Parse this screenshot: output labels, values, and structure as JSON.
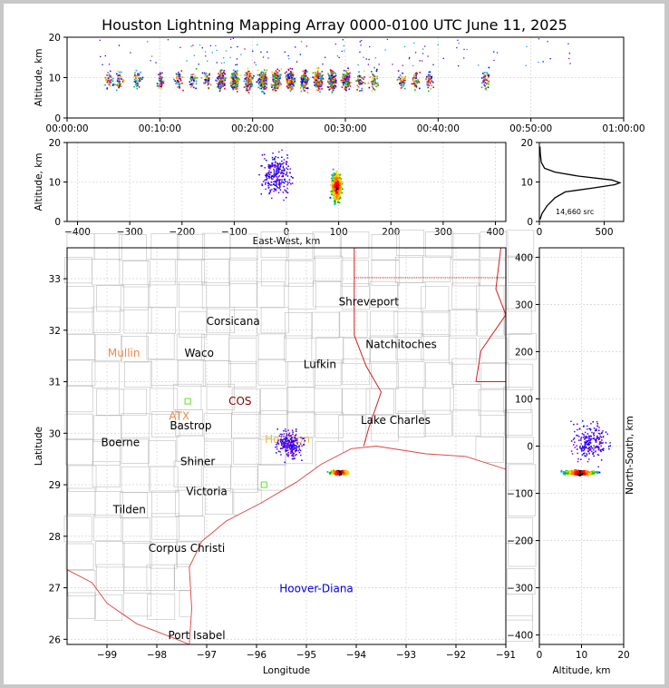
{
  "title": "Houston Lightning Mapping Array 0000-0100 UTC June 11, 2025",
  "colors": {
    "county": "#bdbdbd",
    "state": "#d22020",
    "coast": "#e04040",
    "grid": "#d8d8d8",
    "sources": [
      "#7a00d6",
      "#0000ff",
      "#00a0ff",
      "#00c800",
      "#ffd000",
      "#ff7a00",
      "#ff0000",
      "#000000"
    ]
  },
  "chart_data": [
    {
      "id": "time-altitude",
      "type": "scatter",
      "ylabel": "Altitude, km",
      "xlim_minutes": [
        0,
        60
      ],
      "ylim": [
        0,
        20
      ],
      "xticks": [
        "00:00:00",
        "00:10:00",
        "00:20:00",
        "00:30:00",
        "00:40:00",
        "00:50:00",
        "01:00:00"
      ],
      "yticks": [
        "0",
        "10",
        "20"
      ],
      "activity_bursts_minutes": [
        4.5,
        5.5,
        7.5,
        10,
        12,
        13.5,
        15,
        16.5,
        18,
        19.5,
        21,
        22.5,
        24,
        25.5,
        27,
        28.5,
        30,
        31.5,
        33,
        36,
        37.5,
        39,
        45
      ]
    },
    {
      "id": "east-west-altitude",
      "type": "scatter",
      "xlabel": "East-West, km",
      "ylabel": "Altitude, km",
      "xlim": [
        -420,
        420
      ],
      "ylim": [
        0,
        20
      ],
      "xticks": [
        "−400",
        "−300",
        "−200",
        "−100",
        "0",
        "100",
        "200",
        "300",
        "400"
      ],
      "yticks": [
        "0",
        "10",
        "20"
      ],
      "core_center_km": {
        "x": 95,
        "z": 9
      }
    },
    {
      "id": "altitude-histogram",
      "type": "line",
      "xlim": [
        0,
        650
      ],
      "ylim": [
        0,
        20
      ],
      "xticks": [
        "0",
        "500"
      ],
      "yticks": [
        "0",
        "10",
        "20"
      ],
      "annotation": "14,660 src",
      "profile": [
        {
          "count": 5,
          "alt": 0.5
        },
        {
          "count": 20,
          "alt": 2
        },
        {
          "count": 60,
          "alt": 4
        },
        {
          "count": 120,
          "alt": 6
        },
        {
          "count": 200,
          "alt": 7.5
        },
        {
          "count": 420,
          "alt": 8.5
        },
        {
          "count": 580,
          "alt": 9.3
        },
        {
          "count": 620,
          "alt": 9.8
        },
        {
          "count": 560,
          "alt": 10.5
        },
        {
          "count": 300,
          "alt": 11.5
        },
        {
          "count": 120,
          "alt": 12.5
        },
        {
          "count": 40,
          "alt": 13.5
        },
        {
          "count": 15,
          "alt": 15
        },
        {
          "count": 8,
          "alt": 17
        },
        {
          "count": 4,
          "alt": 19
        }
      ]
    },
    {
      "id": "plan-view-map",
      "type": "scatter",
      "xlabel": "Longitude",
      "ylabel": "Latitude",
      "xlim": [
        -99.8,
        -91
      ],
      "ylim": [
        25.9,
        33.6
      ],
      "xticks": [
        "−99",
        "−98",
        "−97",
        "−96",
        "−95",
        "−94",
        "−93",
        "−92",
        "−91"
      ],
      "yticks": [
        "26",
        "27",
        "28",
        "29",
        "30",
        "31",
        "32",
        "33"
      ],
      "cities": [
        {
          "name": "Shreveport",
          "lon": -93.75,
          "lat": 32.55,
          "color": "#000000"
        },
        {
          "name": "Corsicana",
          "lon": -96.47,
          "lat": 32.17,
          "color": "#000000"
        },
        {
          "name": "Natchitoches",
          "lon": -93.1,
          "lat": 31.72,
          "color": "#000000"
        },
        {
          "name": "Mullin",
          "lon": -98.66,
          "lat": 31.56,
          "color": "#f08848"
        },
        {
          "name": "Waco",
          "lon": -97.15,
          "lat": 31.56,
          "color": "#000000"
        },
        {
          "name": "Lufkin",
          "lon": -94.73,
          "lat": 31.34,
          "color": "#000000"
        },
        {
          "name": "COS",
          "lon": -96.33,
          "lat": 30.62,
          "color": "#800000"
        },
        {
          "name": "ATX",
          "lon": -97.55,
          "lat": 30.33,
          "color": "#f08848"
        },
        {
          "name": "Lake Charles",
          "lon": -93.21,
          "lat": 30.25,
          "color": "#000000"
        },
        {
          "name": "Bastrop",
          "lon": -97.32,
          "lat": 30.15,
          "color": "#000000"
        },
        {
          "name": "Houston",
          "lon": -95.38,
          "lat": 29.88,
          "color": "#f0b840"
        },
        {
          "name": "Boerne",
          "lon": -98.73,
          "lat": 29.82,
          "color": "#000000"
        },
        {
          "name": "Shiner",
          "lon": -97.18,
          "lat": 29.45,
          "color": "#000000"
        },
        {
          "name": "Victoria",
          "lon": -97.0,
          "lat": 28.87,
          "color": "#000000"
        },
        {
          "name": "Tilden",
          "lon": -98.55,
          "lat": 28.52,
          "color": "#000000"
        },
        {
          "name": "Corpus Christi",
          "lon": -97.4,
          "lat": 27.77,
          "color": "#000000"
        },
        {
          "name": "Hoover-Diana",
          "lon": -94.8,
          "lat": 26.98,
          "color": "#0000e0"
        },
        {
          "name": "Port Isabel",
          "lon": -97.2,
          "lat": 26.08,
          "color": "#000000"
        }
      ],
      "core_center": {
        "lon": -94.35,
        "lat": 29.25
      }
    },
    {
      "id": "altitude-north-south",
      "type": "scatter",
      "xlabel": "Altitude, km",
      "ylabel": "North-South, km",
      "xlim": [
        0,
        20
      ],
      "ylim": [
        -420,
        420
      ],
      "xticks": [
        "0",
        "10",
        "20"
      ],
      "yticks": [
        "−400",
        "−300",
        "−200",
        "−100",
        "0",
        "100",
        "200",
        "300",
        "400"
      ]
    }
  ]
}
